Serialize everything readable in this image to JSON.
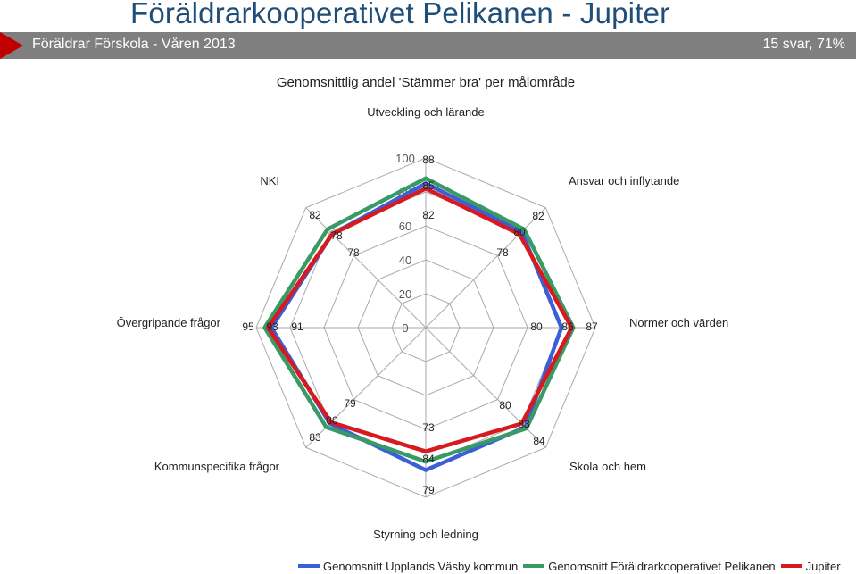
{
  "header": {
    "title": "Föräldrarkooperativet Pelikanen - Jupiter",
    "subtitle": "Föräldrar Förskola - Våren 2013",
    "response_info": "15 svar, 71%",
    "banner_color": "#7f7f7f",
    "accent_color": "#c00000"
  },
  "chart_data": {
    "type": "radar",
    "title": "Genomsnittlig andel 'Stämmer bra' per målområde",
    "axes": [
      "Utveckling och lärande",
      "Ansvar och inflytande",
      "Normer och värden",
      "Skola och hem",
      "Styrning och ledning",
      "Kommunspecifika frågor",
      "Övergripande frågor",
      "NKI"
    ],
    "rlim": [
      0,
      100
    ],
    "ticks": [
      0,
      20,
      40,
      60,
      80,
      100
    ],
    "grid": true,
    "legend_position": "bottom",
    "series": [
      {
        "name": "Genomsnitt Upplands Väsby kommun",
        "color": "#3c5fd6",
        "values": [
          85,
          80,
          80,
          83,
          84,
          80,
          91,
          78
        ],
        "label_values": [
          "85",
          "80",
          "80",
          "83",
          "84",
          "80",
          "91",
          "78"
        ]
      },
      {
        "name": "Genomsnitt Föräldrarkooperativet Pelikanen",
        "color": "#3a9a66",
        "values": [
          88,
          82,
          87,
          84,
          79,
          83,
          95,
          82
        ],
        "label_values": [
          "88",
          "82",
          "87",
          "84",
          "79",
          "83",
          "95",
          "82"
        ]
      },
      {
        "name": "Jupiter",
        "color": "#d71920",
        "values": [
          82,
          78,
          86,
          80,
          73,
          79,
          93,
          78
        ],
        "label_values": [
          "82",
          "78",
          "86",
          "80",
          "73",
          "79",
          "93",
          "78"
        ]
      }
    ]
  }
}
